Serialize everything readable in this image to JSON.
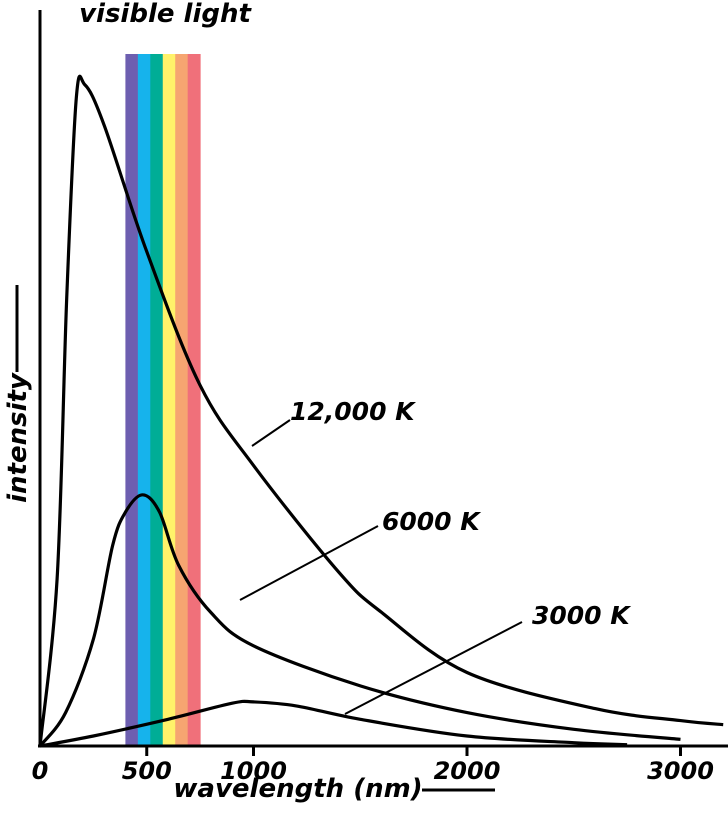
{
  "chart_data": {
    "type": "line",
    "title": "",
    "xlabel": "wavelength (nm)",
    "ylabel": "intensity",
    "xlim": [
      0,
      3200
    ],
    "ylim": [
      0,
      1
    ],
    "x_ticks": [
      "0",
      "500",
      "1000",
      "2000",
      "3000"
    ],
    "band": {
      "label": "visible light",
      "range": [
        400,
        750
      ],
      "colors": [
        "#6d5fb0",
        "#16b3ec",
        "#00ad96",
        "#fff26a",
        "#f6a571",
        "#f0707a"
      ]
    },
    "series": [
      {
        "name": "12,000 K",
        "points": [
          [
            0,
            0
          ],
          [
            80,
            0.25
          ],
          [
            125,
            0.67
          ],
          [
            170,
            0.97
          ],
          [
            210,
            0.99
          ],
          [
            300,
            0.93
          ],
          [
            500,
            0.74
          ],
          [
            750,
            0.54
          ],
          [
            1000,
            0.42
          ],
          [
            1400,
            0.26
          ],
          [
            1600,
            0.2
          ],
          [
            2000,
            0.11
          ],
          [
            2600,
            0.056
          ],
          [
            3000,
            0.038
          ],
          [
            3200,
            0.032
          ]
        ]
      },
      {
        "name": "6000 K",
        "points": [
          [
            0,
            0
          ],
          [
            120,
            0.05
          ],
          [
            250,
            0.16
          ],
          [
            340,
            0.3
          ],
          [
            400,
            0.35
          ],
          [
            480,
            0.376
          ],
          [
            560,
            0.35
          ],
          [
            650,
            0.27
          ],
          [
            800,
            0.2
          ],
          [
            1000,
            0.15
          ],
          [
            1500,
            0.09
          ],
          [
            2000,
            0.05
          ],
          [
            2500,
            0.025
          ],
          [
            3000,
            0.01
          ]
        ]
      },
      {
        "name": "3000 K",
        "points": [
          [
            0,
            0
          ],
          [
            250,
            0.015
          ],
          [
            600,
            0.04
          ],
          [
            900,
            0.064
          ],
          [
            1000,
            0.066
          ],
          [
            1200,
            0.06
          ],
          [
            1500,
            0.04
          ],
          [
            2000,
            0.015
          ],
          [
            2500,
            0.005
          ],
          [
            2750,
            0.002
          ]
        ]
      }
    ]
  }
}
